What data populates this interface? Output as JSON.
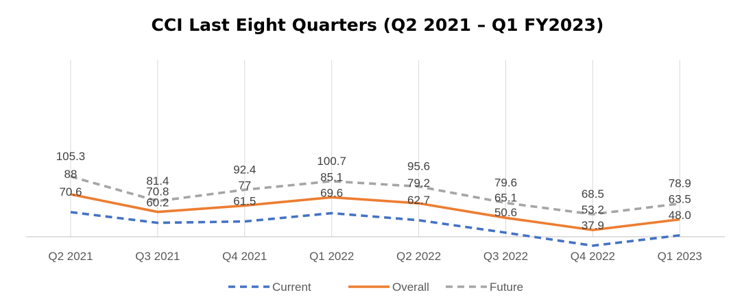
{
  "chart_data": {
    "type": "line",
    "title": "CCI Last Eight Quarters (Q2 2021 – Q1 FY2023)",
    "categories": [
      "Q2 2021",
      "Q3 2021",
      "Q4 2021",
      "Q1 2022",
      "Q2 2022",
      "Q3 2022",
      "Q4 2022",
      "Q1 2023"
    ],
    "series": [
      {
        "name": "Current",
        "color": "#4472C4",
        "dash": "dashed",
        "values": [
          70.6,
          60.2,
          61.5,
          69.6,
          62.7,
          50.6,
          37.9,
          48.0
        ],
        "labels": [
          "70.6",
          "60.2",
          "61.5",
          "69.6",
          "62.7",
          "50.6",
          "37.9",
          "48.0"
        ]
      },
      {
        "name": "Overall",
        "color": "#ED7D31",
        "dash": "solid",
        "values": [
          88,
          70.8,
          77,
          85.1,
          79.2,
          65.1,
          53.2,
          63.5
        ],
        "labels": [
          "88",
          "70.8",
          "77",
          "85.1",
          "79.2",
          "65.1",
          "53.2",
          "63.5"
        ]
      },
      {
        "name": "Future",
        "color": "#A5A5A5",
        "dash": "dashed",
        "values": [
          105.3,
          81.4,
          92.4,
          100.7,
          95.6,
          79.6,
          68.5,
          78.9
        ],
        "labels": [
          "105.3",
          "81.4",
          "92.4",
          "100.7",
          "95.6",
          "79.6",
          "68.5",
          "78.9"
        ]
      }
    ],
    "legend_position": "bottom",
    "grid": "vertical"
  }
}
